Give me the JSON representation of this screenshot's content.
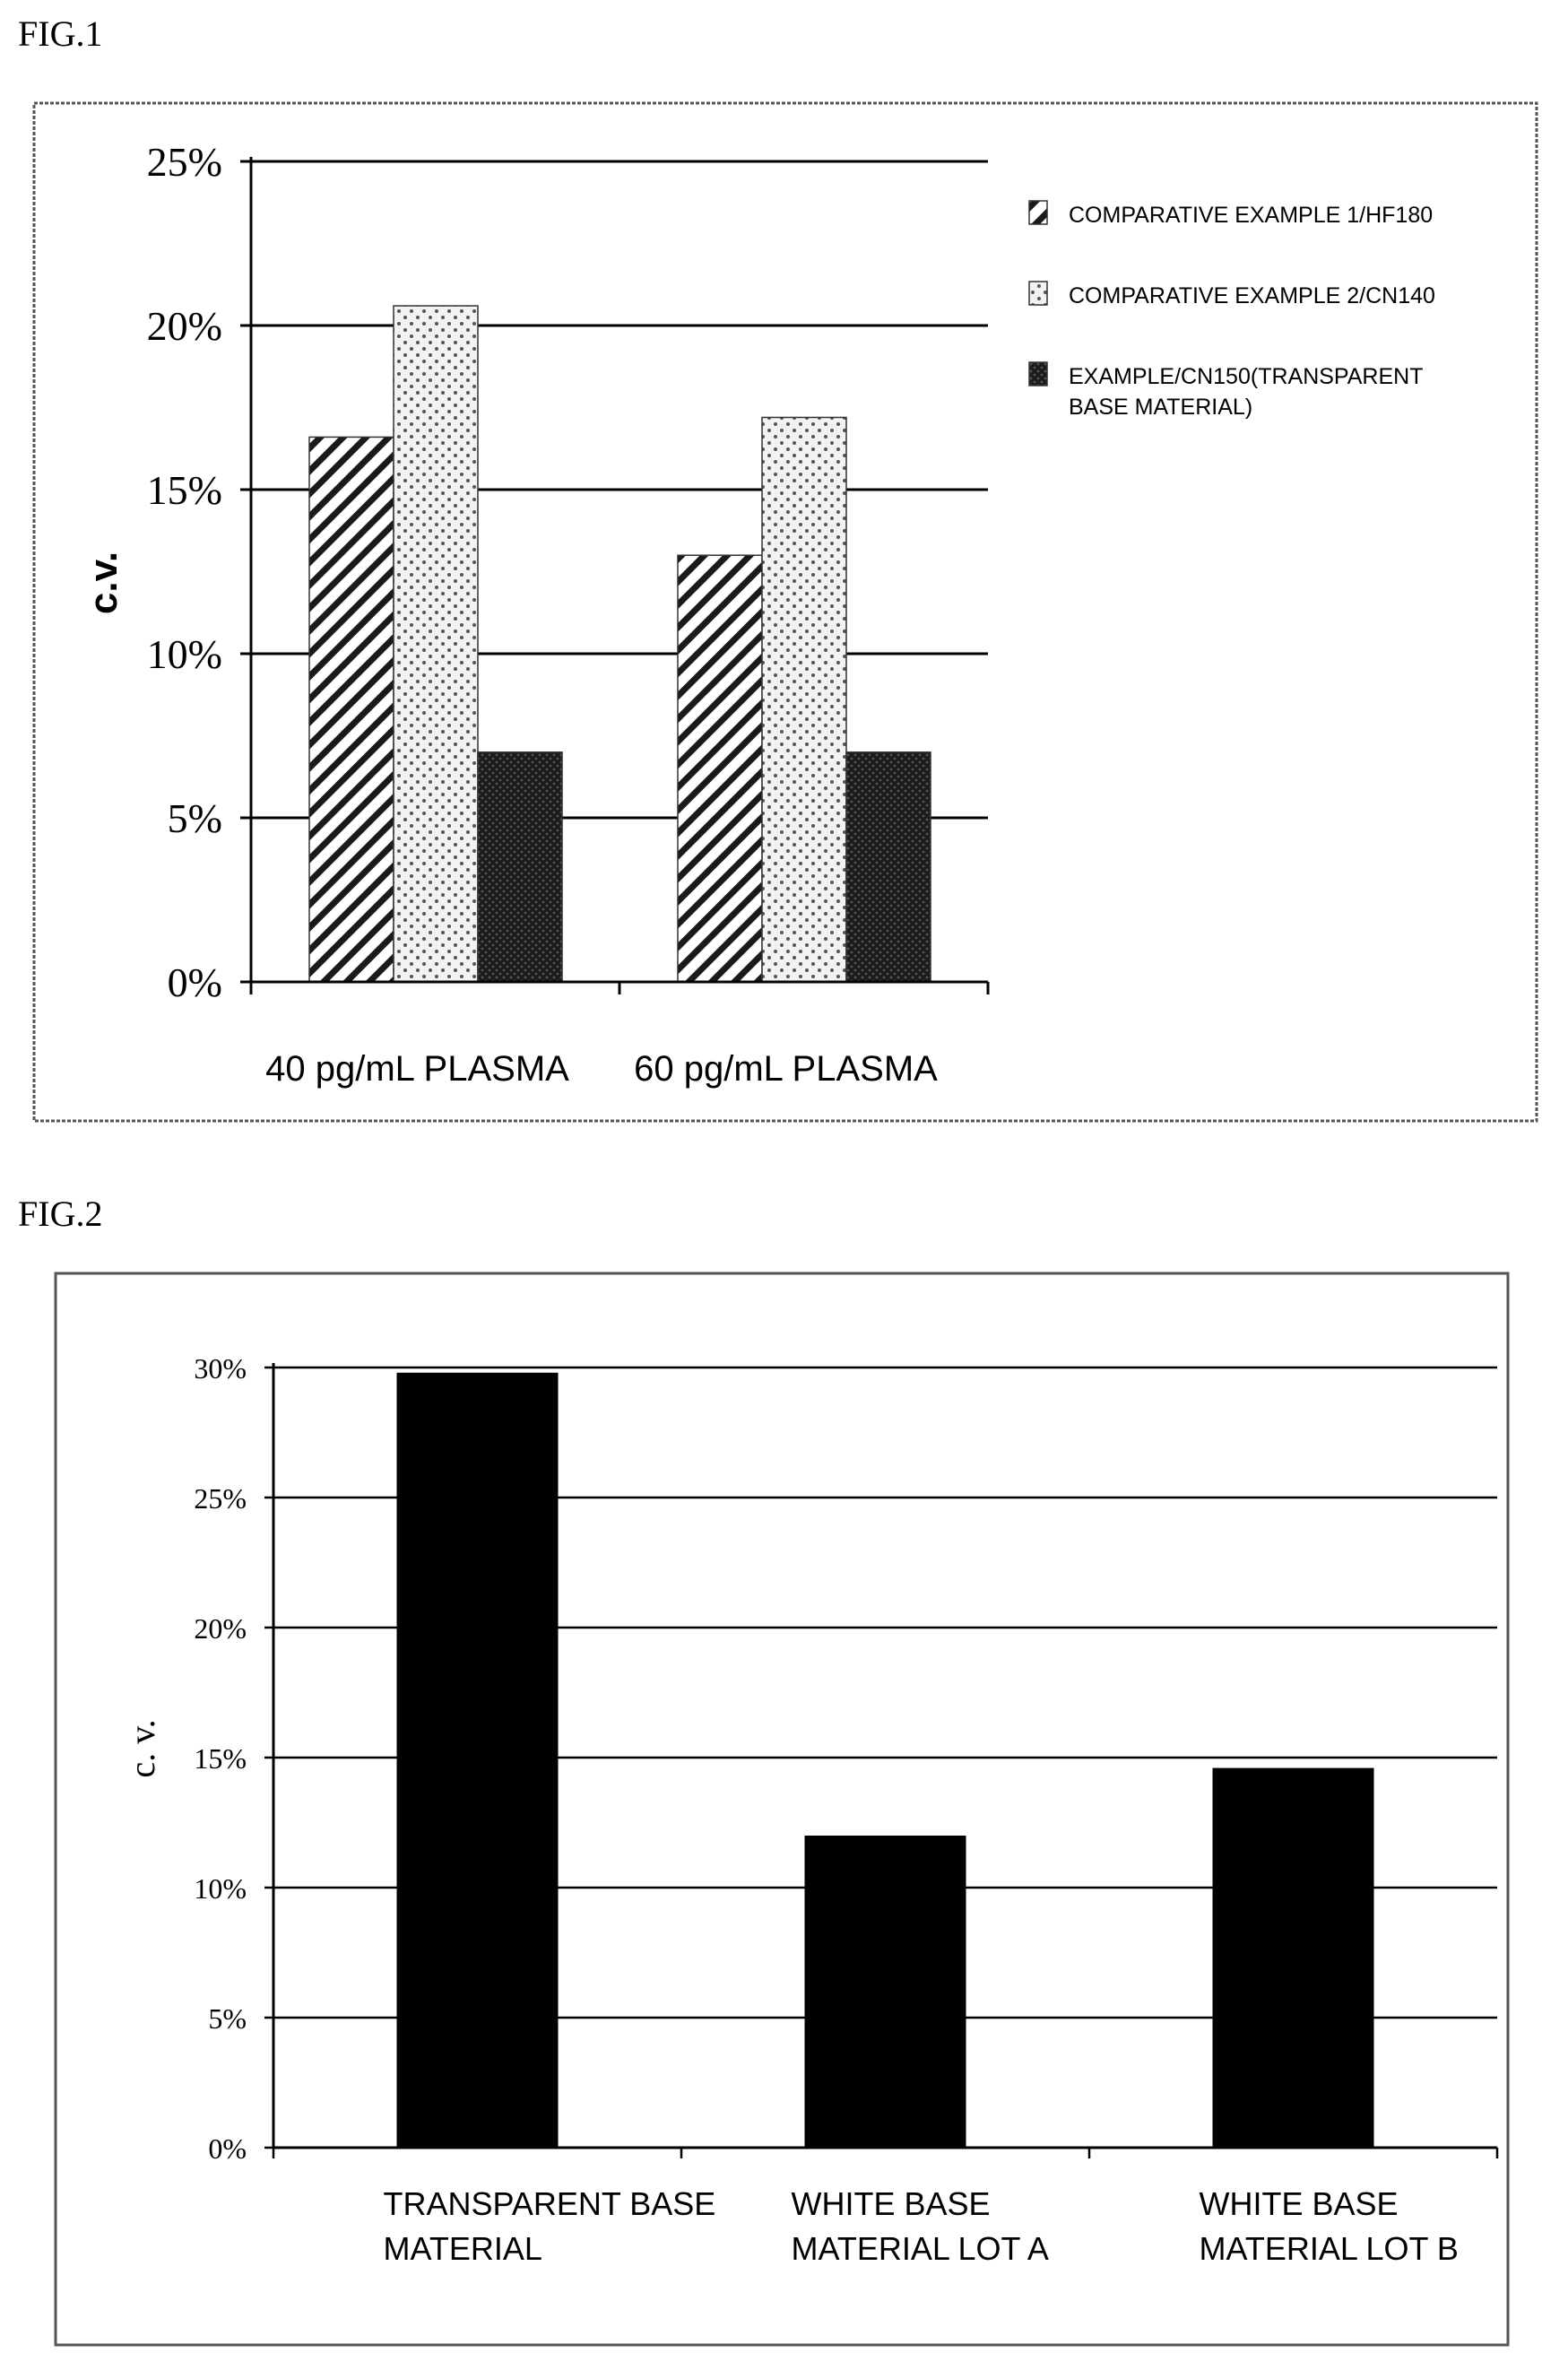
{
  "figures": [
    {
      "label": "FIG.1"
    },
    {
      "label": "FIG.2"
    }
  ],
  "colors": {
    "axis": "#000000",
    "grid": "#000000",
    "frame": "#555555",
    "bar_dark": "#111111"
  },
  "chart_data": [
    {
      "type": "bar",
      "title": "",
      "xlabel": "",
      "ylabel": "c.v.",
      "ylim": [
        0,
        25
      ],
      "yticks": [
        "0%",
        "5%",
        "10%",
        "15%",
        "20%",
        "25%"
      ],
      "ytick_values": [
        0,
        5,
        10,
        15,
        20,
        25
      ],
      "grid": true,
      "legend": "right",
      "categories": [
        "40 pg/mL PLASMA",
        "60 pg/mL PLASMA"
      ],
      "series": [
        {
          "name": "COMPARATIVE EXAMPLE 1/HF180",
          "pattern": "hatch",
          "values": [
            16.6,
            13.0
          ]
        },
        {
          "name": "COMPARATIVE EXAMPLE 2/CN140",
          "pattern": "dots",
          "values": [
            20.6,
            17.2
          ]
        },
        {
          "name": "EXAMPLE/CN150(TRANSPARENT BASE MATERIAL)",
          "pattern": "dark",
          "values": [
            7.0,
            7.0
          ]
        }
      ]
    },
    {
      "type": "bar",
      "title": "",
      "xlabel": "",
      "ylabel": "c. v.",
      "ylim": [
        0,
        30
      ],
      "yticks": [
        "0%",
        "5%",
        "10%",
        "15%",
        "20%",
        "25%",
        "30%"
      ],
      "ytick_values": [
        0,
        5,
        10,
        15,
        20,
        25,
        30
      ],
      "grid": true,
      "legend": "none",
      "categories": [
        [
          "TRANSPARENT BASE",
          "MATERIAL"
        ],
        [
          "WHITE BASE",
          "MATERIAL LOT A"
        ],
        [
          "WHITE BASE",
          "MATERIAL LOT B"
        ]
      ],
      "values": [
        29.8,
        12.0,
        14.6
      ]
    }
  ]
}
